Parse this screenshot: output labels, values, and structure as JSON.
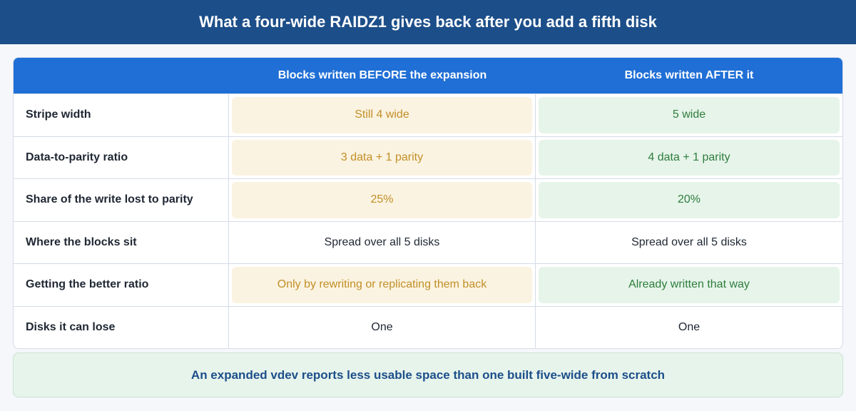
{
  "header": {
    "title": "What a four-wide RAIDZ1 gives back after you add a fifth disk"
  },
  "table": {
    "columns": [
      "Blocks written BEFORE the expansion",
      "Blocks written AFTER it"
    ],
    "rows": [
      [
        "Stripe width",
        "Still 4 wide",
        "5 wide"
      ],
      [
        "Data-to-parity ratio",
        "3 data + 1 parity",
        "4 data + 1 parity"
      ],
      [
        "Share of the write lost to parity",
        "25%",
        "20%"
      ],
      [
        "Where the blocks sit",
        "Spread over all 5 disks",
        "Spread over all 5 disks"
      ],
      [
        "Getting the better ratio",
        "Only by rewriting or replicating them back",
        "Already written that way"
      ],
      [
        "Disks it can lose",
        "One",
        "One"
      ]
    ]
  },
  "footer": {
    "note": "An expanded vdev reports less usable space than one built five-wide from scratch"
  }
}
